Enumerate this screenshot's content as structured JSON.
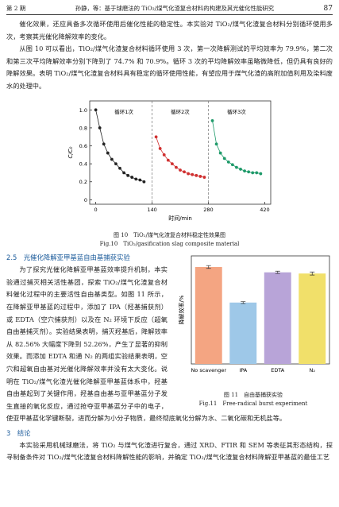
{
  "header": {
    "issue": "第 2 期",
    "title": "孙静，等：基于球磨法的 TiO₂/煤气化渣复合材料的构建及其光催化性能研究",
    "page": "87"
  },
  "paragraphs": [
    "催化效果，还应具备多次循环使用后催化性能的稳定性。本实验对 TiO₂/煤气化渣复合材料分别循环使用多次，考察其光催化降解效率的变化。",
    "从图 10 可以看出，TiO₂/煤气化渣复合材料循环使用 3 次，第一次降解测试的平均效率为 79.9%，第二次和第三次平均降解效率分别下降到了 74.7% 和 70.9%。循环 3 次的平均降解效率虽略微降低，但仍具有良好的降解效果。表明 TiO₂/煤气化渣复合材料具有稳定的循环使用性能，有望应用于煤气化渣的高附加值利用及染料废水的处理中。"
  ],
  "chart_data": [
    {
      "type": "line",
      "ylabel": "C/C₀",
      "xlabel": "时间/min",
      "annotations": [
        "循环1次",
        "循环2次",
        "循环3次"
      ],
      "xlim": [
        -15,
        435
      ],
      "xticks": [
        0,
        140,
        280,
        420
      ],
      "ylim": [
        -0.05,
        1.1
      ],
      "yticks": [
        0,
        0.2,
        0.4,
        0.6,
        0.8,
        {
          "value": 1,
          "label": "1.0"
        }
      ],
      "series": [
        {
          "color": "#222222",
          "x": [
            0,
            10,
            20,
            30,
            40,
            50,
            60,
            70,
            80,
            90,
            100,
            110,
            120
          ],
          "values": [
            1.0,
            0.8,
            0.62,
            0.52,
            0.45,
            0.4,
            0.35,
            0.3,
            0.27,
            0.25,
            0.23,
            0.22,
            0.2
          ]
        },
        {
          "color": "#d03030",
          "x": [
            150,
            160,
            170,
            180,
            190,
            200,
            210,
            220,
            230,
            240,
            250,
            260,
            270
          ],
          "values": [
            0.7,
            0.57,
            0.5,
            0.44,
            0.4,
            0.36,
            0.33,
            0.31,
            0.29,
            0.28,
            0.27,
            0.26,
            0.25
          ]
        },
        {
          "color": "#1f9a6a",
          "x": [
            290,
            300,
            310,
            320,
            330,
            340,
            350,
            360,
            370,
            380,
            390,
            400,
            410
          ],
          "values": [
            0.88,
            0.62,
            0.52,
            0.46,
            0.42,
            0.39,
            0.36,
            0.34,
            0.32,
            0.31,
            0.3,
            0.3,
            0.29
          ]
        }
      ]
    },
    {
      "type": "bar",
      "ylabel": "降解效率/%",
      "categories": [
        "No scavenger",
        "IPA",
        "EDTA",
        "N₂"
      ],
      "values": [
        82.56,
        52.26,
        78,
        77
      ],
      "errors": [
        1.2,
        0.8,
        1.0,
        1.3
      ],
      "colors": [
        "#f4a582",
        "#9ec8e8",
        "#b8a4d8",
        "#f1e06a"
      ],
      "ylim": [
        0,
        92
      ]
    }
  ],
  "figure_captions": [
    {
      "zh": "图 10　TiO₂/煤气化渣复合材料稳定性效果图",
      "en": "Fig.10　TiO₂/gasification slag composite material"
    },
    {
      "zh": "图 11　自由基捕获实验",
      "en": "Fig.11　Free-radical burst experiment"
    }
  ],
  "section_2_5": {
    "heading": "2.5　光催化降解亚甲基蓝自由基捕获实验",
    "text": "为了探究光催化降解亚甲基蓝效率提升机制，本实验通过捕灭相关活性基团，探索 TiO₂/煤气化渣复合材料催化过程中的主要活性自由基类型。如图 11 所示，在降解亚甲基蓝的过程中，添加了 IPA（羟基捕获剂）或 EDTA（空穴捕获剂）以及在 N₂ 环境下反应（超氧自由基捕灭剂）。实验结果表明，捕灭羟基后，降解效率从 82.56% 大幅度下降到 52.26%，产生了显著的抑制效果。而添加 EDTA 和通 N₂ 的两组实验结果表明，空穴和超氧自由基对光催化降解效率并没有太大变化。说明在 TiO₂/煤气化渣光催化降解亚甲基蓝体系中，羟基自由基起到了关键作用，羟基自由基与亚甲基蓝分子发生直接的氧化反应，通过抢夺亚甲基蓝分子中的电子，使亚甲基蓝化学键断裂，进而分解为小分子物质，最终彻底氧化分解为水、二氧化碳和无机盐等。"
  },
  "section_3": {
    "heading": "3　结论",
    "text": "本实验采用机械球磨法，将 TiO₂ 与煤气化渣进行复合，通过 XRD、FTIR 和 SEM 等表征其形态结构，探寻制备条件对 TiO₂/煤气化渣复合材料降解性能的影响，并确定 TiO₂/煤气化渣复合材料降解亚甲基蓝的最佳工艺"
  }
}
